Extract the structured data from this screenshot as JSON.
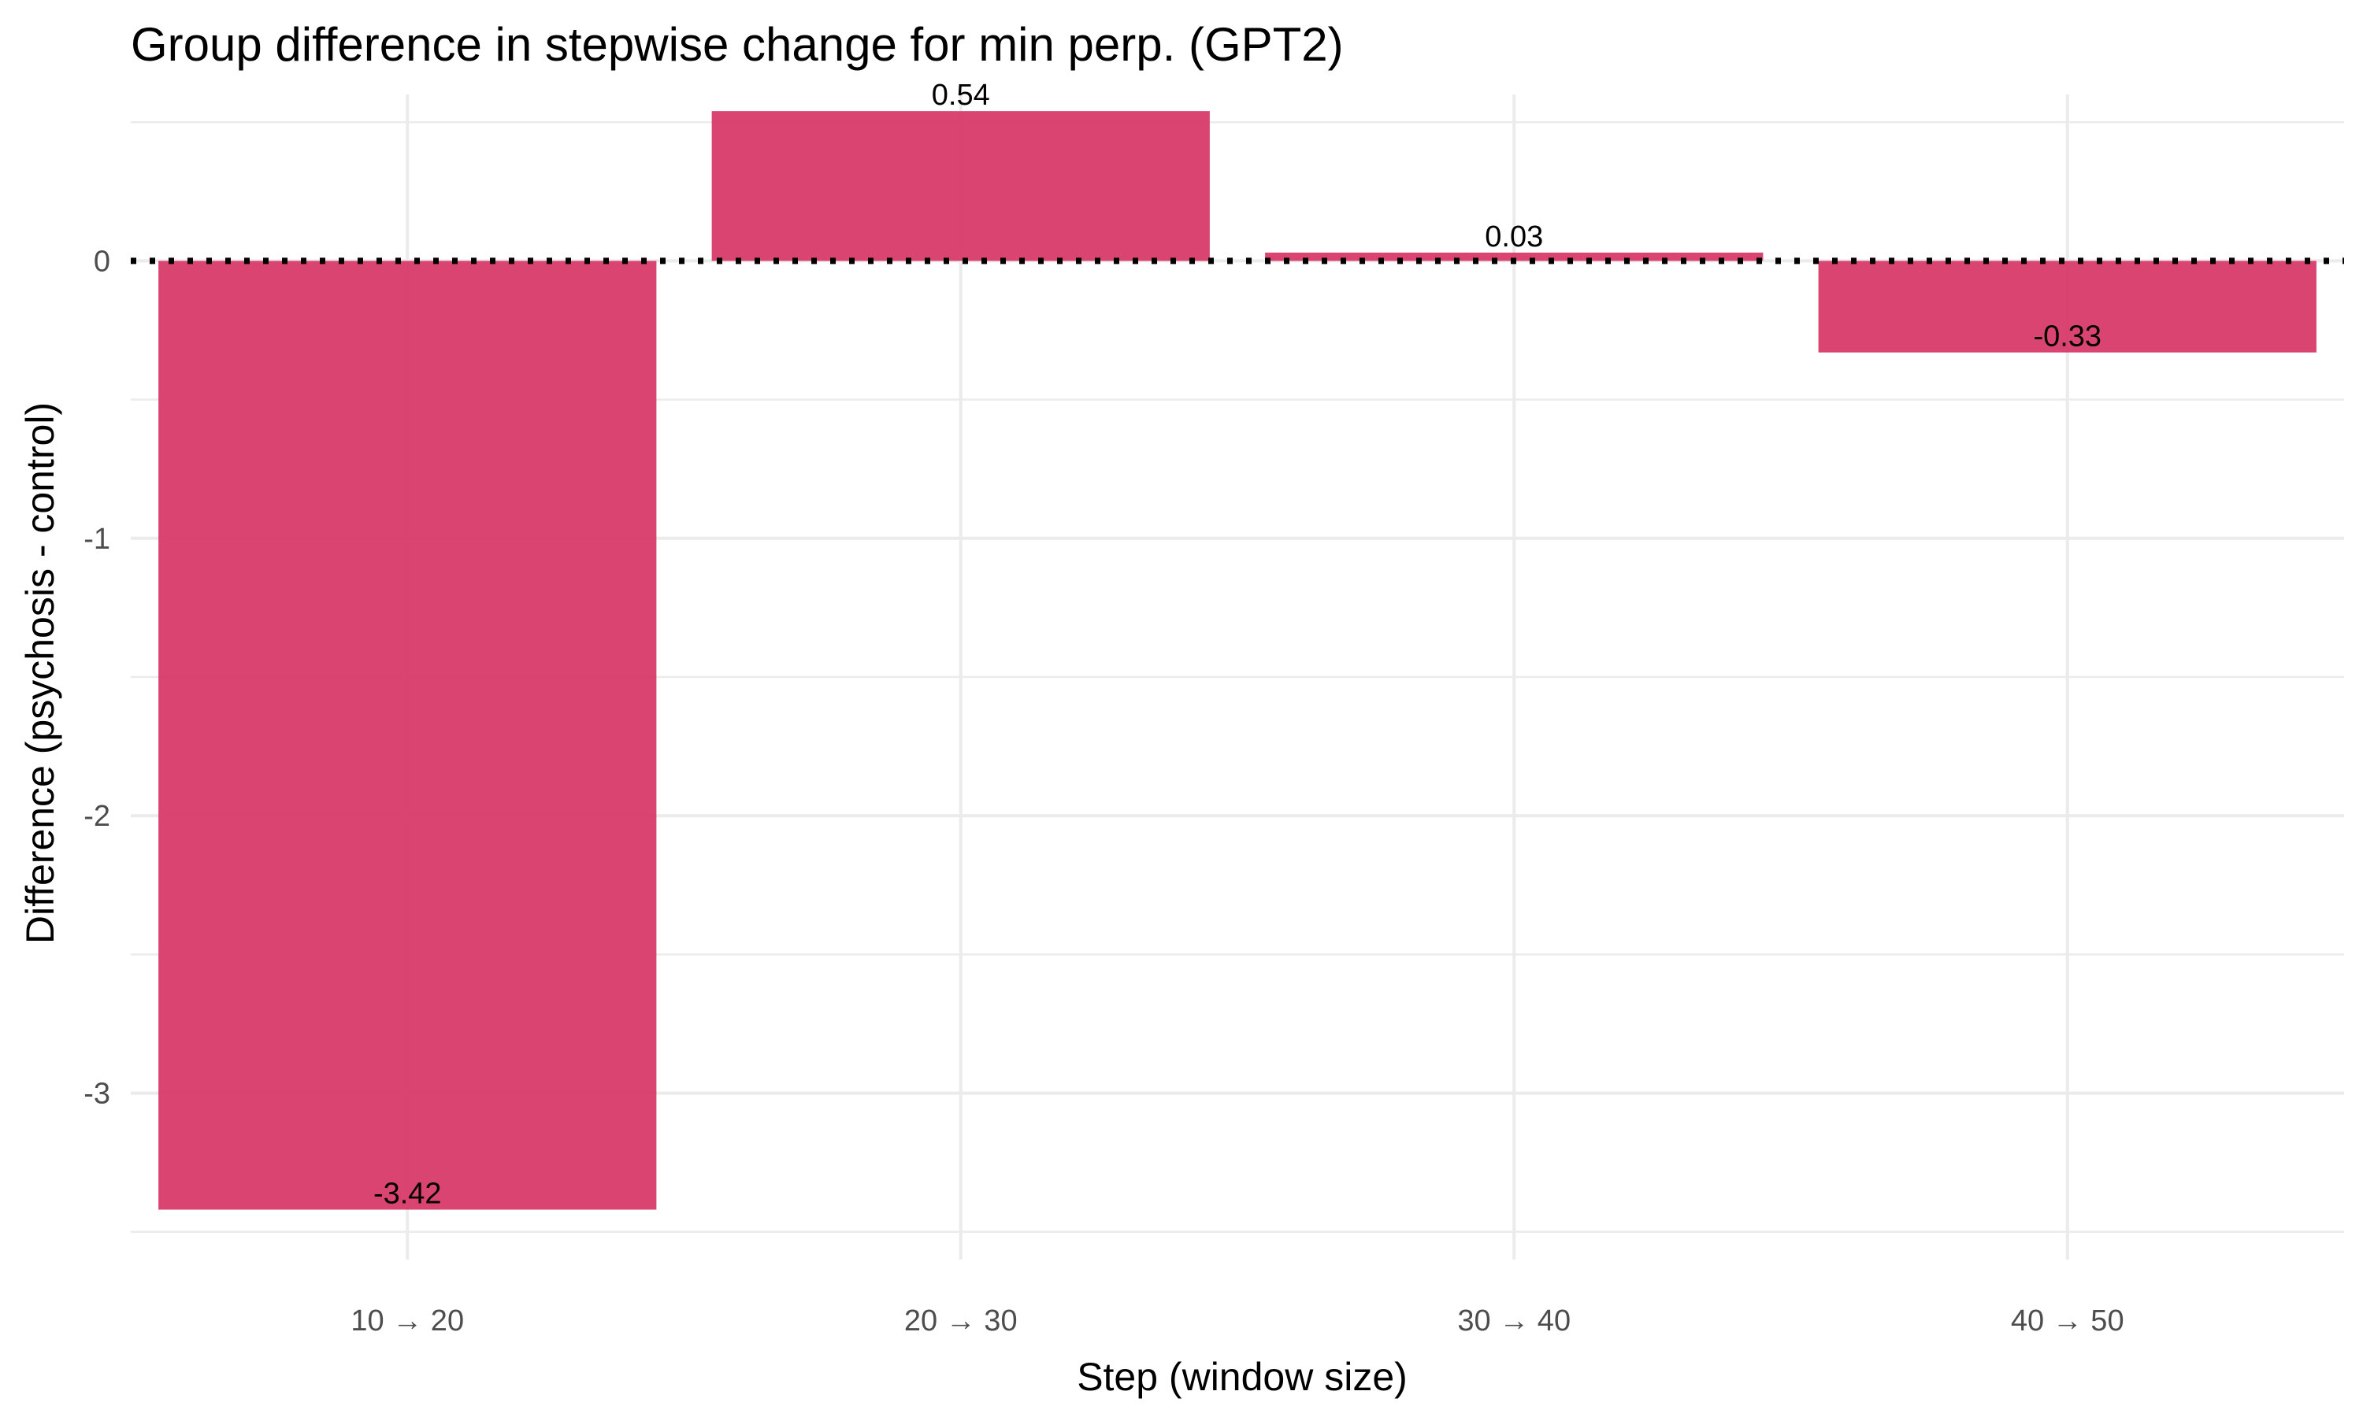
{
  "chart_data": {
    "type": "bar",
    "title": "Group difference in stepwise change for min perp. (GPT2)",
    "xlabel": "Step (window size)",
    "ylabel": "Difference (psychosis - control)",
    "categories": [
      "10 → 20",
      "20 → 30",
      "30 → 40",
      "40 → 50"
    ],
    "values": [
      -3.42,
      0.54,
      0.03,
      -0.33
    ],
    "value_labels": [
      "-3.42",
      "0.54",
      "0.03",
      "-0.33"
    ],
    "ylim": [
      -3.6,
      0.6
    ],
    "yticks": [
      -3,
      -2,
      -1,
      0
    ],
    "ytick_labels": [
      "-3",
      "-2",
      "-1",
      "0"
    ],
    "reference_line": 0,
    "grid": true,
    "bar_color": "#d83a68"
  }
}
